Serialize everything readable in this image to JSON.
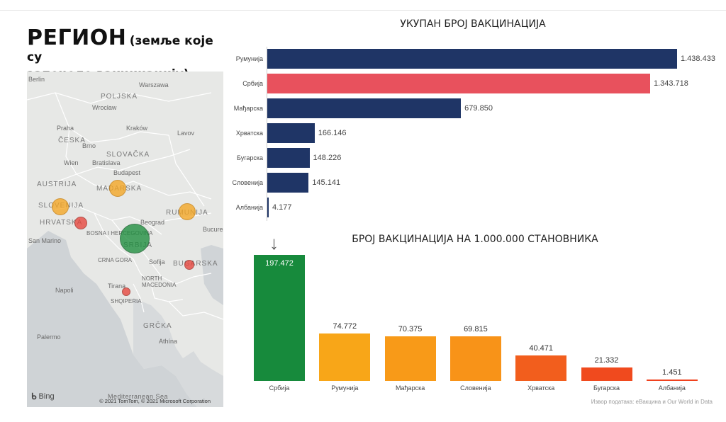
{
  "header": {
    "title": "РЕГИОН",
    "subtitle_part1": "(земље које су",
    "subtitle_part2": "започеле вакцинацију)"
  },
  "map": {
    "country_labels": [
      "POLJSKA",
      "ČESKA",
      "SLOVAČKA",
      "AUSTRIJA",
      "MAĐARSKA",
      "RUMUNIJA",
      "SLOVENIJA",
      "HRVATSKA",
      "SRBIJA",
      "BUGARSKA",
      "GRČKA",
      "NORTH MACEDONIA",
      "SHQIPERIA",
      "BOSNA I HERCEGOVINA",
      "CRNA GORA"
    ],
    "city_labels": [
      "Berlin",
      "Warszawa",
      "Wrocław",
      "Praha",
      "Kraków",
      "Lavov",
      "Brno",
      "Wien",
      "Bratislava",
      "Budapest",
      "Beograd",
      "Bucureș",
      "Sofija",
      "Tirana",
      "Napoli",
      "Palermo",
      "Athína",
      "San Marino"
    ],
    "sea_label": "Mediterranean Sea",
    "bing_label": "Bing",
    "copyright": "© 2021 TomTom, © 2021 Microsoft Corporation",
    "colors": {
      "green": "#1e8e3e",
      "orange": "#f5a623",
      "red": "#e8453c"
    }
  },
  "chart1": {
    "title": "УКУПАН БРОЈ ВАКЦИНАЦИЈА",
    "labels": [
      "1.438.433",
      "1.343.718",
      "679.850",
      "166.146",
      "148.226",
      "145.141",
      "4.177"
    ]
  },
  "chart2": {
    "title": "БРОЈ ВАКЦИНАЦИЈА НА 1.000.000 СТАНОВНИКА",
    "labels": [
      "197.472",
      "74.772",
      "70.375",
      "69.815",
      "40.471",
      "21.332",
      "1.451"
    ],
    "arrow": "↓"
  },
  "source": "Извор података: еВакцина и Our World in Data",
  "chart_data": [
    {
      "type": "bar",
      "orientation": "horizontal",
      "title": "УКУПАН БРОЈ ВАКЦИНАЦИЈА",
      "categories": [
        "Румунија",
        "Србија",
        "Мађарска",
        "Хрватска",
        "Бугарска",
        "Словенија",
        "Албанија"
      ],
      "values": [
        1438433,
        1343718,
        679850,
        166146,
        148226,
        145141,
        4177
      ],
      "colors": [
        "#1f3566",
        "#e8515d",
        "#1f3566",
        "#1f3566",
        "#1f3566",
        "#1f3566",
        "#1f3566"
      ],
      "xlim": [
        0,
        1438433
      ],
      "grid": false
    },
    {
      "type": "bar",
      "orientation": "vertical",
      "title": "БРОЈ ВАКЦИНАЦИЈА НА 1.000.000 СТАНОВНИКА",
      "categories": [
        "Србија",
        "Румунија",
        "Мађарска",
        "Словенија",
        "Хрватска",
        "Бугарска",
        "Албанија"
      ],
      "values": [
        197472,
        74772,
        70375,
        69815,
        40471,
        21332,
        1451
      ],
      "colors": [
        "#178a3c",
        "#f8a618",
        "#f89a18",
        "#f89318",
        "#f25e1d",
        "#f04a1e",
        "#f0421e"
      ],
      "ylim": [
        0,
        197472
      ],
      "grid": false
    }
  ]
}
